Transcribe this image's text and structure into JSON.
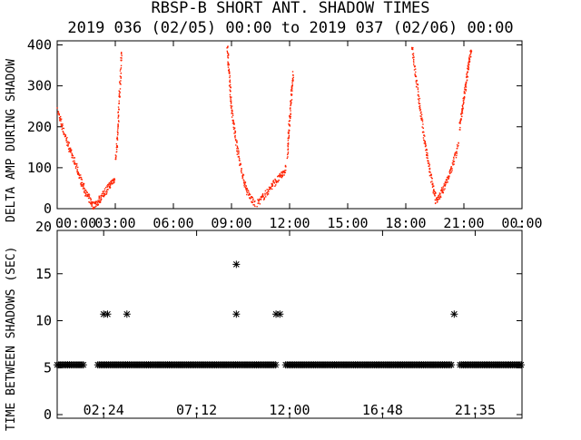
{
  "title_line1": "RBSP-B SHORT ANT. SHADOW TIMES",
  "title_line2": "2019 036 (02/05) 00:00 to 2019 037 (02/06) 00:00",
  "chart_data": [
    {
      "type": "scatter",
      "ylabel": "DELTA AMP DURING SHADOW",
      "xlim_hours": [
        0,
        24
      ],
      "ylim": [
        0,
        410
      ],
      "x_tick_labels": [
        "00:00",
        "03:00",
        "06:00",
        "09:00",
        "12:00",
        "15:00",
        "18:00",
        "21:00",
        "00:00"
      ],
      "y_ticks": [
        0,
        100,
        200,
        300,
        400
      ],
      "color": "#ff2200",
      "series": [
        {
          "x_hours": [
            0.0,
            0.3,
            0.6,
            0.9,
            1.2,
            1.5,
            1.8
          ],
          "values": [
            240,
            190,
            150,
            110,
            70,
            35,
            10
          ]
        },
        {
          "x_hours": [
            1.8,
            2.1,
            2.4,
            2.7,
            2.95
          ],
          "values": [
            8,
            20,
            40,
            60,
            75
          ]
        },
        {
          "x_hours": [
            3.0,
            3.1,
            3.2,
            3.3
          ],
          "values": [
            120,
            200,
            290,
            390
          ]
        },
        {
          "x_hours": [
            8.75,
            8.85,
            8.95,
            9.1,
            9.3,
            9.55,
            9.8,
            10.2
          ],
          "values": [
            400,
            330,
            260,
            200,
            140,
            80,
            40,
            10
          ]
        },
        {
          "x_hours": [
            10.3,
            10.7,
            11.1,
            11.5,
            11.8
          ],
          "values": [
            15,
            35,
            60,
            80,
            100
          ]
        },
        {
          "x_hours": [
            11.85,
            11.95,
            12.05,
            12.15
          ],
          "values": [
            130,
            200,
            270,
            330
          ]
        },
        {
          "x_hours": [
            18.3,
            18.5,
            18.7,
            18.9,
            19.1,
            19.3,
            19.5
          ],
          "values": [
            400,
            320,
            250,
            180,
            120,
            70,
            30
          ]
        },
        {
          "x_hours": [
            19.5,
            19.8,
            20.1,
            20.4,
            20.7
          ],
          "values": [
            15,
            40,
            70,
            110,
            160
          ]
        },
        {
          "x_hours": [
            20.75,
            20.9,
            21.05,
            21.2,
            21.35
          ],
          "values": [
            200,
            250,
            300,
            350,
            390
          ]
        }
      ]
    },
    {
      "type": "scatter",
      "ylabel": "TIME BETWEEN SHADOWS (SEC)",
      "xlim_hours": [
        0,
        24
      ],
      "ylim": [
        0,
        20
      ],
      "x_tick_labels": [
        "02:24",
        "07:12",
        "12:00",
        "16:48",
        "21:35"
      ],
      "y_ticks": [
        0,
        5,
        10,
        15,
        20
      ],
      "marker": "*",
      "baseline_value": 5.3,
      "baseline_ranges_hours": [
        [
          0.0,
          1.4
        ],
        [
          2.1,
          11.3
        ],
        [
          11.8,
          20.4
        ],
        [
          20.8,
          24.0
        ]
      ],
      "points": [
        {
          "x_hours": 2.4,
          "value": 10.7
        },
        {
          "x_hours": 2.6,
          "value": 10.7
        },
        {
          "x_hours": 3.6,
          "value": 10.7
        },
        {
          "x_hours": 9.25,
          "value": 16.0
        },
        {
          "x_hours": 9.25,
          "value": 10.7
        },
        {
          "x_hours": 11.3,
          "value": 10.7
        },
        {
          "x_hours": 11.5,
          "value": 10.7
        },
        {
          "x_hours": 20.5,
          "value": 10.7
        }
      ]
    }
  ]
}
